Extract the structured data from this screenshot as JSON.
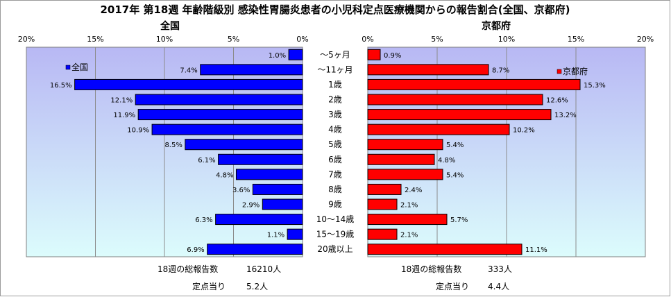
{
  "title": "2017年 第18週 年齢階級別 感染性胃腸炎患者の小児科定点医療機関からの報告割合(全国、京都府)",
  "colors": {
    "national": "#0000ff",
    "kyoto": "#ff0000",
    "bar_edge": "#000000",
    "plot_top": "#b8b8f4",
    "plot_bottom": "#dcfcfc"
  },
  "chart_data": [
    {
      "type": "bar",
      "orientation": "horizontal-reversed",
      "title": "全国",
      "legend": "全国",
      "legend_position": "top-left",
      "xlim": [
        0,
        20
      ],
      "ticks": [
        "0%",
        "5%",
        "10%",
        "15%",
        "20%"
      ],
      "grid": true,
      "categories": [
        "～5ヶ月",
        "～11ヶ月",
        "1歳",
        "2歳",
        "3歳",
        "4歳",
        "5歳",
        "6歳",
        "7歳",
        "8歳",
        "9歳",
        "10～14歳",
        "15～19歳",
        "20歳以上"
      ],
      "values": [
        1.0,
        7.4,
        16.5,
        12.1,
        11.9,
        10.9,
        8.5,
        6.1,
        4.8,
        3.6,
        2.9,
        6.3,
        1.1,
        6.9
      ],
      "labels": [
        "1.0%",
        "7.4%",
        "16.5%",
        "12.1%",
        "11.9%",
        "10.9%",
        "8.5%",
        "6.1%",
        "4.8%",
        "3.6%",
        "2.9%",
        "6.3%",
        "1.1%",
        "6.9%"
      ]
    },
    {
      "type": "bar",
      "orientation": "horizontal",
      "title": "京都府",
      "legend": "京都府",
      "legend_position": "top-right",
      "xlim": [
        0,
        20
      ],
      "ticks": [
        "0%",
        "5%",
        "10%",
        "15%",
        "20%"
      ],
      "grid": true,
      "categories": [
        "～5ヶ月",
        "～11ヶ月",
        "1歳",
        "2歳",
        "3歳",
        "4歳",
        "5歳",
        "6歳",
        "7歳",
        "8歳",
        "9歳",
        "10～14歳",
        "15～19歳",
        "20歳以上"
      ],
      "values": [
        0.9,
        8.7,
        15.3,
        12.6,
        13.2,
        10.2,
        5.4,
        4.8,
        5.4,
        2.4,
        2.1,
        5.7,
        2.1,
        11.1
      ],
      "labels": [
        "0.9%",
        "8.7%",
        "15.3%",
        "12.6%",
        "13.2%",
        "10.2%",
        "5.4%",
        "4.8%",
        "5.4%",
        "2.4%",
        "2.1%",
        "5.7%",
        "2.1%",
        "11.1%"
      ]
    }
  ],
  "footer": {
    "national": {
      "total_label": "18週の総報告数",
      "total_value": "16210人",
      "per_label": "定点当り",
      "per_value": "5.2人"
    },
    "kyoto": {
      "total_label": "18週の総報告数",
      "total_value": "333人",
      "per_label": "定点当り",
      "per_value": "4.4人"
    }
  }
}
